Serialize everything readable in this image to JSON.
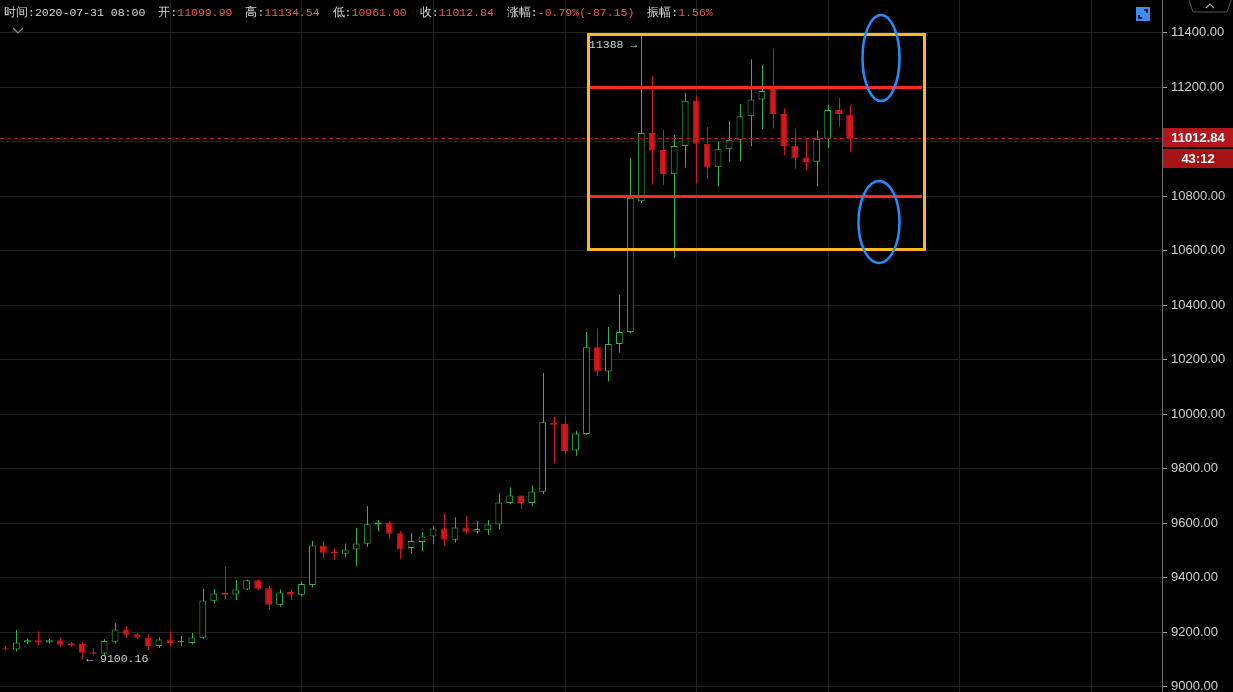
{
  "chart_data": {
    "type": "candlestick",
    "title": "时间:2020-07-31 08:00  开:11099.99  高:11134.54  低:10961.00  收:11012.84  涨幅:-0.79%(-87.15)  振幅:1.56%",
    "categories": [
      null,
      null,
      null,
      null,
      null,
      null,
      null,
      null,
      null,
      null,
      null,
      null,
      null,
      null,
      null,
      null,
      null,
      null,
      null,
      null,
      null,
      null,
      null,
      null,
      null,
      null,
      null,
      null,
      null,
      null,
      null,
      null,
      null,
      null,
      null,
      null,
      null,
      null,
      null,
      null,
      null,
      null,
      null,
      null,
      null,
      null,
      null,
      null,
      null,
      null,
      null,
      null,
      null,
      null,
      null,
      null,
      null,
      null,
      null,
      null,
      null,
      null,
      null,
      null,
      null,
      null,
      null,
      null,
      null,
      null,
      null,
      null,
      null,
      null,
      null,
      null,
      null,
      null,
      null,
      null,
      null,
      null,
      null,
      null,
      null,
      null,
      null,
      null,
      null,
      null,
      null,
      null,
      null,
      null,
      null,
      null,
      null,
      null,
      null,
      null,
      null,
      null,
      null,
      null,
      null,
      null
    ],
    "ohlc": [
      [
        9141,
        9148,
        9133,
        9136
      ],
      [
        9136,
        9207,
        9129,
        9162
      ],
      [
        9162,
        9176,
        9157,
        9170
      ],
      [
        9170,
        9203,
        9151,
        9162
      ],
      [
        9162,
        9176,
        9158,
        9170
      ],
      [
        9170,
        9180,
        9146,
        9153
      ],
      [
        9159,
        9164,
        9146,
        9152
      ],
      [
        9156,
        9164,
        9100.16,
        9124
      ],
      [
        9126,
        9140,
        9114,
        9120
      ],
      [
        9121,
        9174,
        9115,
        9167
      ],
      [
        9164,
        9232,
        9158,
        9209
      ],
      [
        9209,
        9222,
        9179,
        9190
      ],
      [
        9192,
        9197,
        9173,
        9179
      ],
      [
        9179,
        9192,
        9134,
        9148
      ],
      [
        9149,
        9181,
        9142,
        9173
      ],
      [
        9173,
        9203,
        9148,
        9160
      ],
      [
        9163,
        9186,
        9148,
        9167
      ],
      [
        9160,
        9197,
        9154,
        9180
      ],
      [
        9179,
        9360,
        9174,
        9316
      ],
      [
        9315,
        9358,
        9305,
        9342
      ],
      [
        9344,
        9440,
        9322,
        9337
      ],
      [
        9338,
        9391,
        9317,
        9356
      ],
      [
        9356,
        9393,
        9354,
        9390
      ],
      [
        9390,
        9393,
        9354,
        9359
      ],
      [
        9361,
        9369,
        9283,
        9300
      ],
      [
        9300,
        9356,
        9293,
        9345
      ],
      [
        9347,
        9356,
        9318,
        9337
      ],
      [
        9337,
        9386,
        9330,
        9376
      ],
      [
        9373,
        9534,
        9364,
        9518
      ],
      [
        9518,
        9534,
        9470,
        9491
      ],
      [
        9495,
        9508,
        9464,
        9488
      ],
      [
        9487,
        9525,
        9473,
        9503
      ],
      [
        9503,
        9583,
        9443,
        9525
      ],
      [
        9524,
        9662,
        9513,
        9596
      ],
      [
        9595,
        9611,
        9570,
        9602
      ],
      [
        9602,
        9607,
        9541,
        9561
      ],
      [
        9563,
        9570,
        9469,
        9504
      ],
      [
        9509,
        9563,
        9487,
        9534
      ],
      [
        9531,
        9567,
        9498,
        9551
      ],
      [
        9551,
        9589,
        9523,
        9580
      ],
      [
        9580,
        9636,
        9516,
        9539
      ],
      [
        9539,
        9621,
        9528,
        9584
      ],
      [
        9584,
        9626,
        9562,
        9568
      ],
      [
        9568,
        9607,
        9562,
        9578
      ],
      [
        9574,
        9611,
        9556,
        9595
      ],
      [
        9595,
        9709,
        9577,
        9676
      ],
      [
        9674,
        9731,
        9669,
        9701
      ],
      [
        9701,
        9701,
        9652,
        9674
      ],
      [
        9674,
        9738,
        9662,
        9716
      ],
      [
        9715,
        10151,
        9706,
        9970
      ],
      [
        9969,
        9991,
        9820,
        9961
      ],
      [
        9964,
        9994,
        9852,
        9865
      ],
      [
        9866,
        9939,
        9847,
        9929
      ],
      [
        9927,
        10301,
        9923,
        10245
      ],
      [
        10245,
        10315,
        10140,
        10156
      ],
      [
        10156,
        10320,
        10120,
        10257
      ],
      [
        10257,
        10438,
        10226,
        10301
      ],
      [
        10301,
        10940,
        10296,
        10794
      ],
      [
        10781,
        11388,
        10775,
        11032
      ],
      [
        11032,
        11240,
        10842,
        10968
      ],
      [
        10969,
        11043,
        10842,
        10880
      ],
      [
        10880,
        11024,
        10573,
        10984
      ],
      [
        10984,
        11179,
        10905,
        11150
      ],
      [
        11150,
        11170,
        10847,
        10992
      ],
      [
        10992,
        11053,
        10863,
        10905
      ],
      [
        10906,
        11001,
        10836,
        10972
      ],
      [
        10972,
        11075,
        10925,
        11007
      ],
      [
        11007,
        11137,
        10930,
        11093
      ],
      [
        11093,
        11302,
        10983,
        11155
      ],
      [
        11155,
        11281,
        11046,
        11186
      ],
      [
        11203,
        11342,
        11048,
        11102
      ],
      [
        11102,
        11122,
        10950,
        10983
      ],
      [
        10985,
        11048,
        10901,
        10938
      ],
      [
        10942,
        11014,
        10895,
        10925
      ],
      [
        10926,
        11041,
        10836,
        11011
      ],
      [
        11011,
        11136,
        10976,
        11116
      ],
      [
        11116,
        11160,
        11055,
        11102
      ],
      [
        11099.99,
        11134.54,
        10961.0,
        11012.84
      ],
      null,
      null,
      null,
      null,
      null,
      null,
      null,
      null,
      null,
      null,
      null,
      null,
      null,
      null,
      null,
      null,
      null,
      null,
      null,
      null,
      null,
      null,
      null,
      null,
      null,
      null,
      null,
      null
    ],
    "colors": [
      "#d2181b",
      "#2db84d",
      "#2db84d",
      "#d2181b",
      "#2db84d",
      "#d2181b",
      "#d2181b",
      "#d2181b",
      "#d2181b",
      "#2db84d",
      "#2db84d",
      "#d2181b",
      "#d2181b",
      "#d2181b",
      "#2db84d",
      "#d2181b",
      "#2db84d",
      "#2db84d",
      "#2db84d",
      "#2db84d",
      "#d2181b",
      "#2db84d",
      "#2db84d",
      "#d2181b",
      "#d2181b",
      "#2db84d",
      "#d2181b",
      "#2db84d",
      "#2db84d",
      "#d2181b",
      "#d2181b",
      "#2db84d",
      "#2db84d",
      "#2db84d",
      "#2db84d",
      "#d2181b",
      "#d2181b",
      "#2db84d",
      "#2db84d",
      "#2db84d",
      "#d2181b",
      "#2db84d",
      "#d2181b",
      "#2db84d",
      "#2db84d",
      "#2db84d",
      "#2db84d",
      "#d2181b",
      "#2db84d",
      "#2db84d",
      "#d2181b",
      "#d2181b",
      "#2db84d",
      "#2db84d",
      "#d2181b",
      "#2db84d",
      "#2db84d",
      "#2db84d",
      "#2db84d",
      "#d2181b",
      "#d2181b",
      "#2db84d",
      "#2db84d",
      "#d2181b",
      "#d2181b",
      "#2db84d",
      "#2db84d",
      "#2db84d",
      "#2db84d",
      "#2db84d",
      "#d2181b",
      "#d2181b",
      "#d2181b",
      "#d2181b",
      "#2db84d",
      "#2db84d",
      "#d2181b",
      "#d2181b",
      null,
      null,
      null,
      null,
      null,
      null,
      null,
      null,
      null,
      null,
      null,
      null,
      null,
      null,
      null,
      null,
      null,
      null,
      null,
      null,
      null,
      null,
      null,
      null,
      null,
      null,
      null,
      null
    ],
    "ylim": [
      8980,
      11520
    ],
    "yticks": [
      {
        "value": 9000,
        "label": "9000.00"
      },
      {
        "value": 9200,
        "label": "9200.00"
      },
      {
        "value": 9400,
        "label": "9400.00"
      },
      {
        "value": 9600,
        "label": "9600.00"
      },
      {
        "value": 9800,
        "label": "9800.00"
      },
      {
        "value": 10000,
        "label": "10000.00"
      },
      {
        "value": 10200,
        "label": "10200.00"
      },
      {
        "value": 10400,
        "label": "10400.00"
      },
      {
        "value": 10600,
        "label": "10600.00"
      },
      {
        "value": 10800,
        "label": "10800.00"
      },
      {
        "value": 11000,
        "label": null
      },
      {
        "value": 11200,
        "label": "11200.00"
      },
      {
        "value": 11400,
        "label": "11400.00"
      }
    ],
    "tick_labels": "y",
    "grid": true,
    "ref_lines": [
      {
        "axis": "y",
        "value": 11012.84,
        "label": "11012.84",
        "color": "#b3171b",
        "line_style": "dashed"
      },
      {
        "axis": "y",
        "value": 11200,
        "color": "#ff2a1f",
        "line_style": "solid"
      },
      {
        "axis": "y",
        "value": 10800,
        "color": "#ff2a1f",
        "line_style": "solid"
      }
    ],
    "annotations": [
      "11388 →",
      "← 9100.16",
      "43:12"
    ]
  }
}
